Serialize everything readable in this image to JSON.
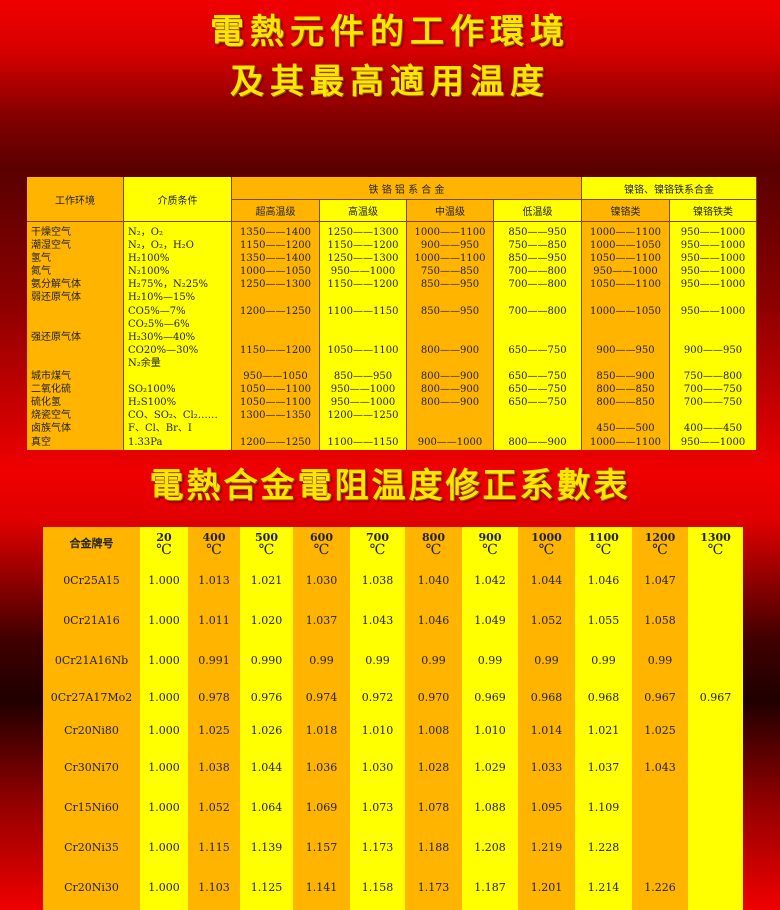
{
  "title1_line1": "電熱元件的工作環境",
  "title1_line2": "及其最高適用温度",
  "table1": {
    "headers": {
      "env": "工作环境",
      "medium": "介质条件",
      "group_fecral": "铁 铬 铝 系 合 金",
      "group_nicr": "镍铬、镍铬铁系合金",
      "sub": [
        "超高温级",
        "高温级",
        "中温级",
        "低温级",
        "镍铬类",
        "镍铬铁类"
      ]
    },
    "rows": [
      [
        "干燥空气",
        "N₂，O₂",
        "1350——1400",
        "1250——1300",
        "1000——1100",
        "850——950",
        "1000——1100",
        "950——1000"
      ],
      [
        "潮湿空气",
        "N₂，O₂，H₂O",
        "1150——1200",
        "1150——1200",
        "900——950",
        "750——850",
        "1000——1050",
        "950——1000"
      ],
      [
        "氢气",
        "H₂100%",
        "1350——1400",
        "1250——1300",
        "1000——1100",
        "850——950",
        "1050——1100",
        "950——1000"
      ],
      [
        "氮气",
        "N₂100%",
        "1000——1050",
        "950——1000",
        "750——850",
        "700——800",
        "950——1000",
        "950——1000"
      ],
      [
        "氨分解气体",
        "H₂75%，N₂25%",
        "1250——1300",
        "1150——1200",
        "850——950",
        "700——800",
        "1050——1100",
        "950——1000"
      ],
      [
        "弱还原气体",
        "H₂10%—15%",
        "",
        "",
        "",
        "",
        "",
        ""
      ],
      [
        "",
        "CO5%—7%",
        "1200——1250",
        "1100——1150",
        "850——950",
        "700——800",
        "1000——1050",
        "950——1000"
      ],
      [
        "",
        "CO₂5%—6%",
        "",
        "",
        "",
        "",
        "",
        ""
      ],
      [
        "强还原气体",
        "H₂30%—40%",
        "",
        "",
        "",
        "",
        "",
        ""
      ],
      [
        "",
        "CO20%—30%",
        "1150——1200",
        "1050——1100",
        "800——900",
        "650——750",
        "900——950",
        "900——950"
      ],
      [
        "",
        "N₂余量",
        "",
        "",
        "",
        "",
        "",
        ""
      ],
      [
        "城市煤气",
        "",
        "950——1050",
        "850——950",
        "800——900",
        "650——750",
        "850——900",
        "750——800"
      ],
      [
        "二氧化硫",
        "SO₂100%",
        "1050——1100",
        "950——1000",
        "800——900",
        "650——750",
        "800——850",
        "700——750"
      ],
      [
        "硫化氢",
        "H₂S100%",
        "1050——1100",
        "950——1000",
        "800——900",
        "650——750",
        "800——850",
        "700——750"
      ],
      [
        "烧瓷空气",
        "CO、SO₂、Cl₂……",
        "1300——1350",
        "1200——1250",
        "",
        "",
        "",
        ""
      ],
      [
        "卤族气体",
        "F、Cl、Br、I",
        "",
        "",
        "",
        "",
        "450——500",
        "400——450"
      ],
      [
        "真空",
        "1.33Pa",
        "1200——1250",
        "1100——1150",
        "900——1000",
        "800——900",
        "1000——1100",
        "950——1000"
      ]
    ]
  },
  "title2": "電熱合金電阻温度修正系數表",
  "table2": {
    "corner": "合金牌号",
    "unit": "℃",
    "temps": [
      "20",
      "400",
      "500",
      "600",
      "700",
      "800",
      "900",
      "1000",
      "1100",
      "1200",
      "1300"
    ],
    "rows": [
      {
        "alloy": "0Cr25A15",
        "values": [
          "1.000",
          "1.013",
          "1.021",
          "1.030",
          "1.038",
          "1.040",
          "1.042",
          "1.044",
          "1.046",
          "1.047",
          ""
        ]
      },
      {
        "alloy": "0Cr21A16",
        "values": [
          "1.000",
          "1.011",
          "1.020",
          "1.037",
          "1.043",
          "1.046",
          "1.049",
          "1.052",
          "1.055",
          "1.058",
          ""
        ]
      },
      {
        "alloy": "0Cr21A16Nb",
        "values": [
          "1.000",
          "0.991",
          "0.990",
          "0.99",
          "0.99",
          "0.99",
          "0.99",
          "0.99",
          "0.99",
          "0.99",
          ""
        ]
      },
      {
        "alloy": "0Cr27A17Mo2",
        "values": [
          "1.000",
          "0.978",
          "0.976",
          "0.974",
          "0.972",
          "0.970",
          "0.969",
          "0.968",
          "0.968",
          "0.967",
          "0.967"
        ]
      },
      {
        "alloy": "Cr20Ni80",
        "values": [
          "1.000",
          "1.025",
          "1.026",
          "1.018",
          "1.010",
          "1.008",
          "1.010",
          "1.014",
          "1.021",
          "1.025",
          ""
        ]
      },
      {
        "alloy": "Cr30Ni70",
        "values": [
          "1.000",
          "1.038",
          "1.044",
          "1.036",
          "1.030",
          "1.028",
          "1.029",
          "1.033",
          "1.037",
          "1.043",
          ""
        ]
      },
      {
        "alloy": "Cr15Ni60",
        "values": [
          "1.000",
          "1.052",
          "1.064",
          "1.069",
          "1.073",
          "1.078",
          "1.088",
          "1.095",
          "1.109",
          "",
          ""
        ]
      },
      {
        "alloy": "Cr20Ni35",
        "values": [
          "1.000",
          "1.115",
          "1.139",
          "1.157",
          "1.173",
          "1.188",
          "1.208",
          "1.219",
          "1.228",
          "",
          ""
        ]
      },
      {
        "alloy": "Cr20Ni30",
        "values": [
          "1.000",
          "1.103",
          "1.125",
          "1.141",
          "1.158",
          "1.173",
          "1.187",
          "1.201",
          "1.214",
          "1.226",
          ""
        ]
      }
    ]
  },
  "colors": {
    "orange": "#ffb400",
    "yellow": "#ffff00",
    "title": "#ffe600",
    "background": "#e00000"
  }
}
